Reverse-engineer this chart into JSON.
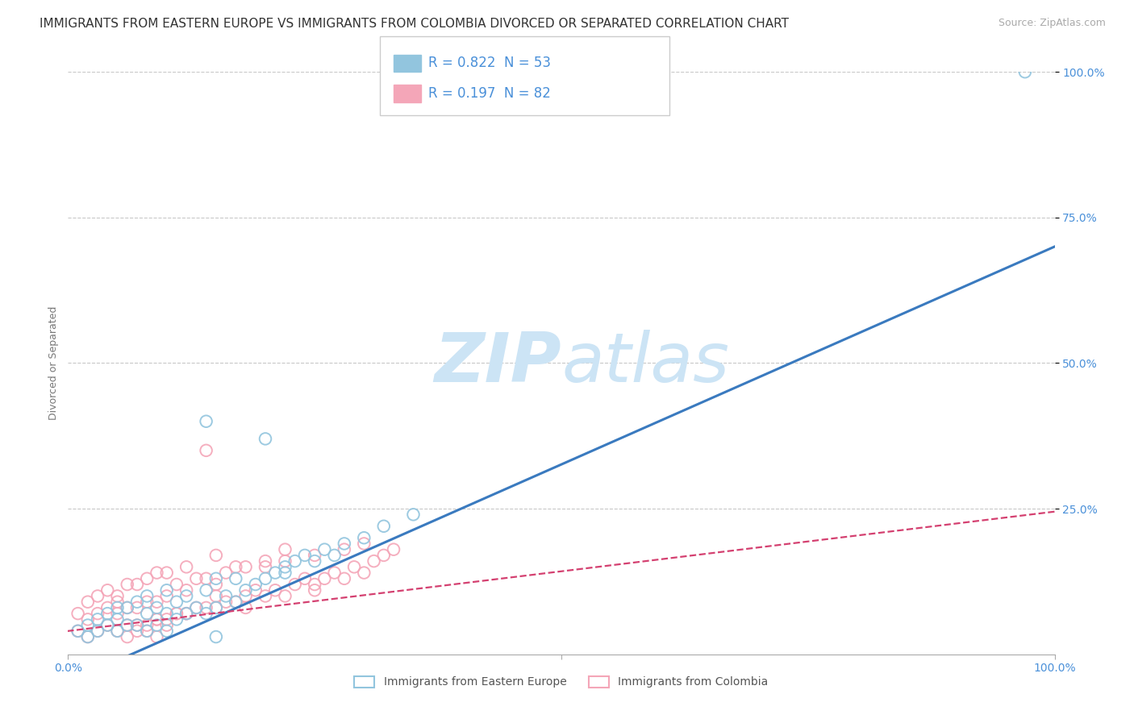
{
  "title": "IMMIGRANTS FROM EASTERN EUROPE VS IMMIGRANTS FROM COLOMBIA DIVORCED OR SEPARATED CORRELATION CHART",
  "source": "Source: ZipAtlas.com",
  "ylabel": "Divorced or Separated",
  "legend_label_blue": "Immigrants from Eastern Europe",
  "legend_label_pink": "Immigrants from Colombia",
  "R_blue": 0.822,
  "N_blue": 53,
  "R_pink": 0.197,
  "N_pink": 82,
  "color_blue": "#92c5de",
  "color_pink": "#f4a6b8",
  "color_line_blue": "#3a7abf",
  "color_line_pink": "#d44070",
  "color_text_blue": "#4a90d9",
  "color_label": "#777777",
  "background": "#ffffff",
  "grid_color": "#c8c8c8",
  "watermark_color": "#cce4f5",
  "xlim": [
    0.0,
    1.0
  ],
  "ylim": [
    0.0,
    1.0
  ],
  "ytick_values": [
    0.25,
    0.5,
    0.75,
    1.0
  ],
  "blue_line_intercept": -0.048,
  "blue_line_slope": 0.748,
  "pink_line_intercept": 0.04,
  "pink_line_slope": 0.205,
  "blue_scatter_x": [
    0.01,
    0.02,
    0.02,
    0.03,
    0.03,
    0.04,
    0.04,
    0.05,
    0.05,
    0.05,
    0.06,
    0.06,
    0.07,
    0.07,
    0.08,
    0.08,
    0.08,
    0.09,
    0.09,
    0.1,
    0.1,
    0.1,
    0.11,
    0.11,
    0.12,
    0.12,
    0.13,
    0.14,
    0.14,
    0.15,
    0.15,
    0.16,
    0.17,
    0.17,
    0.18,
    0.19,
    0.2,
    0.21,
    0.22,
    0.23,
    0.24,
    0.25,
    0.26,
    0.27,
    0.28,
    0.3,
    0.32,
    0.35,
    0.2,
    0.14,
    0.22,
    0.15,
    0.97
  ],
  "blue_scatter_y": [
    0.04,
    0.03,
    0.05,
    0.04,
    0.06,
    0.05,
    0.07,
    0.04,
    0.06,
    0.08,
    0.05,
    0.08,
    0.05,
    0.09,
    0.04,
    0.07,
    0.1,
    0.05,
    0.08,
    0.04,
    0.07,
    0.11,
    0.06,
    0.09,
    0.07,
    0.1,
    0.08,
    0.07,
    0.11,
    0.08,
    0.13,
    0.1,
    0.09,
    0.13,
    0.11,
    0.12,
    0.13,
    0.14,
    0.15,
    0.16,
    0.17,
    0.16,
    0.18,
    0.17,
    0.19,
    0.2,
    0.22,
    0.24,
    0.37,
    0.4,
    0.14,
    0.03,
    1.0
  ],
  "pink_scatter_x": [
    0.01,
    0.01,
    0.02,
    0.02,
    0.02,
    0.03,
    0.03,
    0.03,
    0.04,
    0.04,
    0.04,
    0.05,
    0.05,
    0.05,
    0.06,
    0.06,
    0.06,
    0.07,
    0.07,
    0.07,
    0.08,
    0.08,
    0.08,
    0.09,
    0.09,
    0.09,
    0.1,
    0.1,
    0.1,
    0.11,
    0.11,
    0.12,
    0.12,
    0.12,
    0.13,
    0.13,
    0.14,
    0.14,
    0.15,
    0.15,
    0.15,
    0.16,
    0.16,
    0.17,
    0.17,
    0.18,
    0.18,
    0.19,
    0.2,
    0.2,
    0.21,
    0.22,
    0.22,
    0.23,
    0.24,
    0.25,
    0.25,
    0.26,
    0.27,
    0.28,
    0.28,
    0.29,
    0.3,
    0.3,
    0.31,
    0.32,
    0.33,
    0.05,
    0.07,
    0.1,
    0.14,
    0.08,
    0.11,
    0.06,
    0.09,
    0.18,
    0.12,
    0.2,
    0.25,
    0.15,
    0.22,
    0.09
  ],
  "pink_scatter_y": [
    0.04,
    0.07,
    0.03,
    0.06,
    0.09,
    0.04,
    0.07,
    0.1,
    0.05,
    0.08,
    0.11,
    0.04,
    0.07,
    0.1,
    0.05,
    0.08,
    0.12,
    0.05,
    0.08,
    0.12,
    0.05,
    0.09,
    0.13,
    0.06,
    0.09,
    0.14,
    0.06,
    0.1,
    0.14,
    0.07,
    0.12,
    0.07,
    0.11,
    0.15,
    0.08,
    0.13,
    0.08,
    0.13,
    0.08,
    0.12,
    0.17,
    0.09,
    0.14,
    0.09,
    0.15,
    0.1,
    0.15,
    0.11,
    0.1,
    0.16,
    0.11,
    0.1,
    0.16,
    0.12,
    0.13,
    0.11,
    0.17,
    0.13,
    0.14,
    0.13,
    0.18,
    0.15,
    0.14,
    0.19,
    0.16,
    0.17,
    0.18,
    0.09,
    0.04,
    0.05,
    0.35,
    0.04,
    0.07,
    0.03,
    0.06,
    0.08,
    0.07,
    0.15,
    0.12,
    0.1,
    0.18,
    0.03
  ],
  "title_fontsize": 11,
  "source_fontsize": 9,
  "axis_label_fontsize": 9,
  "tick_fontsize": 10,
  "legend_fontsize": 12
}
